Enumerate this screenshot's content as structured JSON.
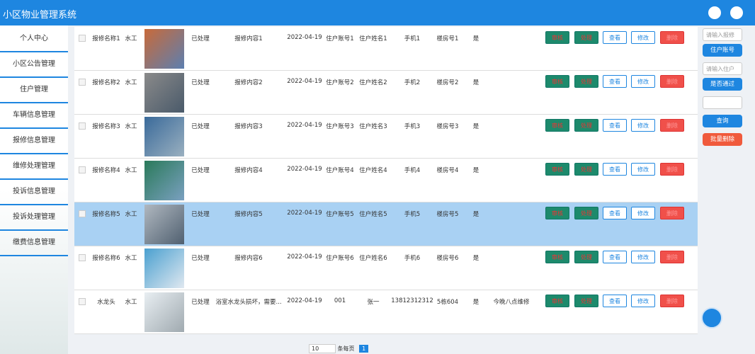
{
  "header": {
    "title": "小区物业管理系统"
  },
  "sidebar": {
    "items": [
      "个人中心",
      "小区公告管理",
      "住户管理",
      "车辆信息管理",
      "报修信息管理",
      "维修处理管理",
      "投诉信息管理",
      "投诉处理管理",
      "缴费信息管理"
    ]
  },
  "table": {
    "actions": [
      "审核",
      "处理",
      "查看",
      "修改",
      "删除"
    ],
    "rows": [
      {
        "name": "报修名称1",
        "type": "水工",
        "status": "已处理",
        "content": "报修内容1",
        "date": "2022-04-19",
        "account": "住户账号1",
        "owner": "住户姓名1",
        "phone": "手机1",
        "building": "楼房号1",
        "passed": "是"
      },
      {
        "name": "报修名称2",
        "type": "水工",
        "status": "已处理",
        "content": "报修内容2",
        "date": "2022-04-19",
        "account": "住户账号2",
        "owner": "住户姓名2",
        "phone": "手机2",
        "building": "楼房号2",
        "passed": "是"
      },
      {
        "name": "报修名称3",
        "type": "水工",
        "status": "已处理",
        "content": "报修内容3",
        "date": "2022-04-19",
        "account": "住户账号3",
        "owner": "住户姓名3",
        "phone": "手机3",
        "building": "楼房号3",
        "passed": "是"
      },
      {
        "name": "报修名称4",
        "type": "水工",
        "status": "已处理",
        "content": "报修内容4",
        "date": "2022-04-19",
        "account": "住户账号4",
        "owner": "住户姓名4",
        "phone": "手机4",
        "building": "楼房号4",
        "passed": "是"
      },
      {
        "name": "报修名称5",
        "type": "水工",
        "status": "已处理",
        "content": "报修内容5",
        "date": "2022-04-19",
        "account": "住户账号5",
        "owner": "住户姓名5",
        "phone": "手机5",
        "building": "楼房号5",
        "passed": "是"
      },
      {
        "name": "报修名称6",
        "type": "水工",
        "status": "已处理",
        "content": "报修内容6",
        "date": "2022-04-19",
        "account": "住户账号6",
        "owner": "住户姓名6",
        "phone": "手机6",
        "building": "楼房号6",
        "passed": "是"
      },
      {
        "name": "水龙头",
        "type": "水工",
        "status": "已处理",
        "content": "浴室水龙头损坏，需要...",
        "date": "2022-04-19",
        "account": "001",
        "owner": "张一",
        "phone": "13812312312",
        "building": "5栋604",
        "passed": "是",
        "note": "今晚八点维修"
      }
    ]
  },
  "search": {
    "placeholder1": "请输入报修",
    "button1": "住户账号",
    "placeholder2": "请输入住户",
    "button2": "是否通过",
    "query": "查询",
    "batch_delete": "批量删除"
  },
  "pagination": {
    "page_size": "10",
    "page_size_label": "条每页",
    "current": "1"
  }
}
